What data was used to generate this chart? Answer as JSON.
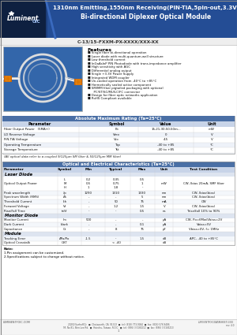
{
  "title_line1": "1310nm Emitting,1550nm Receiving(PIN-TIA,5pin-out,3.3V)",
  "title_line2": "Bi-directional Diplexer Optical Module",
  "part_number": "C-13/15-FXXM-PX-XXXX/XXX-XX",
  "company": "LuminentOIC",
  "header_bg_dark": "#1a3560",
  "header_bg_mid": "#2255a0",
  "header_bg_right": "#3a6abf",
  "features_label": "Features",
  "features": [
    "Single fiber bi-directional operation",
    "Laser diode with multi-quantum-well structure",
    "Low threshold current",
    "InGaAsInP PIN Photodiode with trans-impedance amplifier",
    "High sensitivity with AGC",
    "Differential analog output",
    "Single +3.3V Power Supply",
    "Integrated WDM coupler",
    "Un-cooled operation from -40°C to +85°C",
    "Hermetically sealed active component",
    "SM/MM fiber pigtailed packaging with optional\n  PC/ST/SC/MU/LC/FC connector",
    "Design for fiber optic networks application",
    "RoHS Compliant available"
  ],
  "abs_max_title": "Absolute Maximum Rating (Ta=25°C)",
  "abs_max_headers": [
    "Parameter",
    "Symbol",
    "Value",
    "Unit"
  ],
  "abs_max_rows": [
    [
      "Fiber Output Power   (5MA+)",
      "Po",
      "15,21,30,50,50m...",
      "mW"
    ],
    [
      "LD Reverse Voltage",
      "Vrev",
      "0",
      "V"
    ],
    [
      "PiN-TIA Voltage",
      "Vcc",
      "4.5",
      "V"
    ],
    [
      "Operating Temperature",
      "Top",
      "-40 to +85",
      "°C"
    ],
    [
      "Storage Temperature",
      "Tst",
      "-40 to +85",
      "°C"
    ]
  ],
  "fiber_note": "(All optical data refer to a coupled 9/125μm SM fiber & 50/125μm MM fiber)",
  "elec_opt_title": "Optical and Electrical Characteristics (Ta=25°C)",
  "elec_opt_headers": [
    "Parameter",
    "Symbol",
    "Min",
    "Typical",
    "Max",
    "Unit",
    "Test Condition"
  ],
  "elec_opt_rows": [
    [
      "section",
      "Laser Diode"
    ],
    [
      "Optical Output Power",
      "L\nM\nH",
      "0.2\n0.5\n1",
      "0.35\n0.75\n1.8",
      "0.5\n1\n-",
      "mW",
      "CW, Ibias 20mA, SMF fiber"
    ],
    [
      "Peak wavelength",
      "λp",
      "1290",
      "1310",
      "1330",
      "nm",
      "CW, Ibias(bias)"
    ],
    [
      "Spectrum Width (RMS)",
      "Δλ",
      "-",
      "-",
      "5",
      "nm",
      "CW, Ibias(bias)"
    ],
    [
      "Threshold Current",
      "Ith",
      "-",
      "50",
      "75",
      "mA",
      "CW"
    ],
    [
      "Forward Voltage",
      "Vf",
      "-",
      "1.2",
      "1.5",
      "V",
      "CW, Ibias(bias)"
    ],
    [
      "Rise/Fall Time",
      "tr/tf",
      "-",
      "-",
      "0.5",
      "ns",
      "Trise/fall 10% to 90%"
    ],
    [
      "section",
      "Monitor Diode"
    ],
    [
      "Monitor Current",
      "Im",
      "500",
      "-",
      "-",
      "μA",
      "CW, Po=6Mw/Vbias=2V"
    ],
    [
      "Dark Current",
      "Idark",
      "-",
      "-",
      "0.1",
      "μA",
      "Vbias=5V"
    ],
    [
      "Capacitance",
      "Ct",
      "-",
      "8",
      "75",
      "pF",
      "Vbias=0V, f= 1MHz"
    ],
    [
      "section",
      "Module"
    ],
    [
      "Tracking Error",
      "ΔPo/Po",
      "-1.5",
      "-",
      "1.5",
      "dB",
      "APC, -40 to +85°C"
    ],
    [
      "Optical Crosstalk",
      "OXT",
      "",
      "< -40",
      "",
      "dB",
      ""
    ]
  ],
  "note_lines": [
    "Note:",
    "1.Pin assignment can be customized.",
    "2.Specifications subject to change without notice."
  ],
  "footer_left": "LUMINENTFOIC.COM",
  "footer_addr1": "20250 Sunhoff Dr.  ■  Chatsworth, CA  91313  ■  tel: (818) 773-9044  ■  fax: (818) 576-9486",
  "footer_addr2": "9F, No 81, Shin Lee Rd.  ■  Hsinchu, Taiwan, R.O.C.  ■  tel: (886) 3 5165212  ■  fax: (886) 3 5165213",
  "footer_right1": "LUMINENTFOIC/DATASHEET/1310",
  "footer_right2": "rev. 4.0",
  "bg_color": "#ffffff",
  "table_header_bg": "#4a6fa5",
  "col_header_bg": "#c8d4e8",
  "section_row_bg": "#dde4f0",
  "abs_table_bg": "#edf1f8"
}
